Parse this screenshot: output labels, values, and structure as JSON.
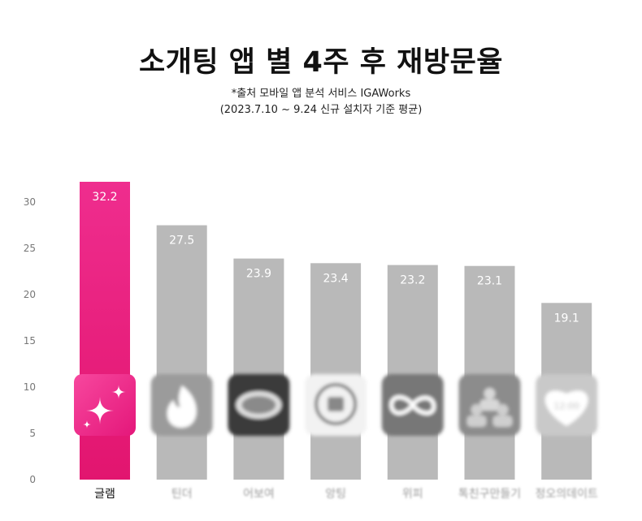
{
  "chart_data": {
    "type": "bar",
    "title": "소개팅 앱 별 4주 후 재방문율",
    "subtitle": [
      "*출처 모바일 앱 분석 서비스 IGAWorks",
      "(2023.7.10 ~ 9.24 신규 설치자 기준 평균)"
    ],
    "categories": [
      "글램",
      "틴더",
      "어보여",
      "앙팅",
      "위피",
      "톡친구만들기",
      "정오의데이트"
    ],
    "values": [
      32.2,
      27.5,
      23.9,
      23.4,
      23.2,
      23.1,
      19.1
    ],
    "value_labels": [
      "32.2",
      "27.5",
      "23.9",
      "23.4",
      "23.2",
      "23.1",
      "19.1"
    ],
    "ylim": [
      0,
      32.2
    ],
    "yticks": [
      "0",
      "5",
      "10",
      "15",
      "20",
      "25",
      "30"
    ],
    "highlight_index": 0,
    "colors": {
      "highlight": "#e8177a",
      "highlight_top": "#ee2a8c",
      "bar": "#b9b9b9",
      "icon_bg": "#f03592"
    },
    "icons": [
      "sparkle-icon",
      "flame-icon",
      "speech-bubble-icon",
      "chat-bubble-icon",
      "infinity-icon",
      "people-icon",
      "heart-clock-icon"
    ],
    "icon_texts": [
      "",
      "",
      "",
      "",
      "",
      "",
      "12:00"
    ]
  }
}
